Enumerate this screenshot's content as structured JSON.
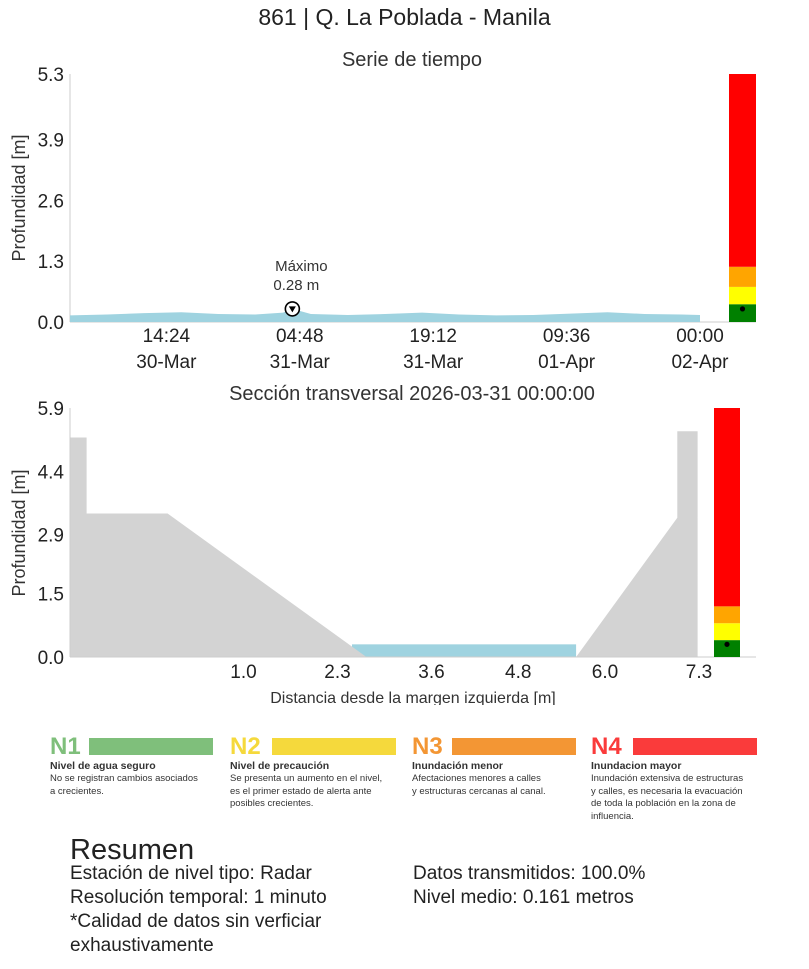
{
  "title": "861 | Q. La Poblada - Manila",
  "chart_data": [
    {
      "type": "area",
      "title": "Serie de tiempo",
      "ylabel": "Profundidad [m]",
      "xlabel": "",
      "ylim": [
        0,
        5.3
      ],
      "yticks": [
        "0.0",
        "1.3",
        "2.6",
        "3.9",
        "5.3"
      ],
      "ytick_values": [
        0,
        1.3,
        2.6,
        3.9,
        5.3
      ],
      "xticks": [
        {
          "time": "2026-03-30 14:24",
          "line1": "14:24",
          "line2": "30-Mar"
        },
        {
          "time": "2026-03-31 04:48",
          "line1": "04:48",
          "line2": "31-Mar"
        },
        {
          "time": "2026-03-31 19:12",
          "line1": "19:12",
          "line2": "31-Mar"
        },
        {
          "time": "2026-04-01 09:36",
          "line1": "09:36",
          "line2": "01-Apr"
        },
        {
          "time": "2026-04-02 00:00",
          "line1": "00:00",
          "line2": "02-Apr"
        }
      ],
      "xrange": [
        "2026-03-30 04:00",
        "2026-04-02 00:00"
      ],
      "series": [
        {
          "color": "#9fd3e0",
          "points": [
            [
              "2026-03-30 04:00",
              0.14
            ],
            [
              "2026-03-30 08:00",
              0.16
            ],
            [
              "2026-03-30 12:00",
              0.19
            ],
            [
              "2026-03-30 16:00",
              0.21
            ],
            [
              "2026-03-30 20:00",
              0.17
            ],
            [
              "2026-03-31 00:00",
              0.16
            ],
            [
              "2026-03-31 03:00",
              0.2
            ],
            [
              "2026-03-31 04:00",
              0.28
            ],
            [
              "2026-03-31 06:00",
              0.17
            ],
            [
              "2026-03-31 10:00",
              0.15
            ],
            [
              "2026-03-31 14:00",
              0.17
            ],
            [
              "2026-03-31 18:00",
              0.2
            ],
            [
              "2026-03-31 22:00",
              0.16
            ],
            [
              "2026-04-01 02:00",
              0.14
            ],
            [
              "2026-04-01 06:00",
              0.15
            ],
            [
              "2026-04-01 10:00",
              0.18
            ],
            [
              "2026-04-01 14:00",
              0.21
            ],
            [
              "2026-04-01 18:00",
              0.17
            ],
            [
              "2026-04-01 22:00",
              0.16
            ],
            [
              "2026-04-02 00:00",
              0.15
            ]
          ]
        }
      ],
      "annotation": {
        "label": "Máximo",
        "value_text": "0.28 m",
        "time": "2026-03-31 04:00",
        "value": 0.28
      },
      "level_bar": [
        {
          "level": "N1",
          "from": 0,
          "to": 0.38,
          "color": "#008000"
        },
        {
          "level": "N2",
          "from": 0.38,
          "to": 0.75,
          "color": "#ffff00"
        },
        {
          "level": "N3",
          "from": 0.75,
          "to": 1.18,
          "color": "#ffa500"
        },
        {
          "level": "N4",
          "from": 1.18,
          "to": 5.3,
          "color": "#ff0000"
        }
      ],
      "current_value": 0.28
    },
    {
      "type": "area",
      "title": "Sección transversal 2026-03-31 00:00:00",
      "ylabel": "Profundidad [m]",
      "xlabel": "Distancia desde la margen izquierda [m]",
      "ylim": [
        0,
        5.9
      ],
      "xlim": [
        -1.4,
        7.3
      ],
      "yticks": [
        "0.0",
        "1.5",
        "2.9",
        "4.4",
        "5.9"
      ],
      "ytick_values": [
        0,
        1.5,
        2.9,
        4.4,
        5.9
      ],
      "xticks": [
        "1.0",
        "2.3",
        "3.6",
        "4.8",
        "6.0",
        "7.3"
      ],
      "xtick_values": [
        1.0,
        2.3,
        3.6,
        4.8,
        6.0,
        7.3
      ],
      "terrain": [
        [
          -1.4,
          5.2
        ],
        [
          -1.17,
          5.2
        ],
        [
          -1.17,
          3.4
        ],
        [
          -0.05,
          3.4
        ],
        [
          2.7,
          0
        ],
        [
          5.6,
          0
        ],
        [
          7.0,
          3.3
        ],
        [
          7.0,
          5.35
        ],
        [
          7.28,
          5.35
        ],
        [
          7.28,
          0
        ]
      ],
      "water": {
        "from": 2.5,
        "to": 5.6,
        "depth": 0.3
      },
      "terrain_color": "#d3d3d3",
      "water_color": "#9fd3e0",
      "level_bar": [
        {
          "level": "N1",
          "from": 0,
          "to": 0.4,
          "color": "#008000"
        },
        {
          "level": "N2",
          "from": 0.4,
          "to": 0.8,
          "color": "#ffff00"
        },
        {
          "level": "N3",
          "from": 0.8,
          "to": 1.2,
          "color": "#ffa500"
        },
        {
          "level": "N4",
          "from": 1.2,
          "to": 5.9,
          "color": "#ff0000"
        }
      ],
      "current_value": 0.3
    }
  ],
  "legend": [
    {
      "code": "N1",
      "color": "#7fbf7b",
      "name": "Nivel de agua seguro",
      "desc": [
        "No se registran cambios asociados",
        "a crecientes."
      ]
    },
    {
      "code": "N2",
      "color": "#f5d93c",
      "name": "Nivel de precaución",
      "desc": [
        "Se presenta un aumento en el nivel,",
        "es el primer estado de alerta ante",
        "posibles crecientes."
      ]
    },
    {
      "code": "N3",
      "color": "#f39634",
      "name": "Inundación menor",
      "desc": [
        "Afectaciones menores a calles",
        "y estructuras cercanas al canal."
      ]
    },
    {
      "code": "N4",
      "color": "#fa3b3b",
      "name": "Inundacion mayor",
      "desc": [
        "Inundación extensiva de estructuras",
        "y calles, es necesaria la evacuación",
        "de toda la población en la zona de",
        "influencia."
      ]
    }
  ],
  "summary": {
    "title": "Resumen",
    "left": [
      "Estación de nivel tipo: Radar",
      "Resolución temporal: 1 minuto",
      "*Calidad de datos sin verficiar",
      "exhaustivamente"
    ],
    "right": [
      "Datos transmitidos: 100.0%",
      "Nivel medio: 0.161 metros"
    ]
  }
}
